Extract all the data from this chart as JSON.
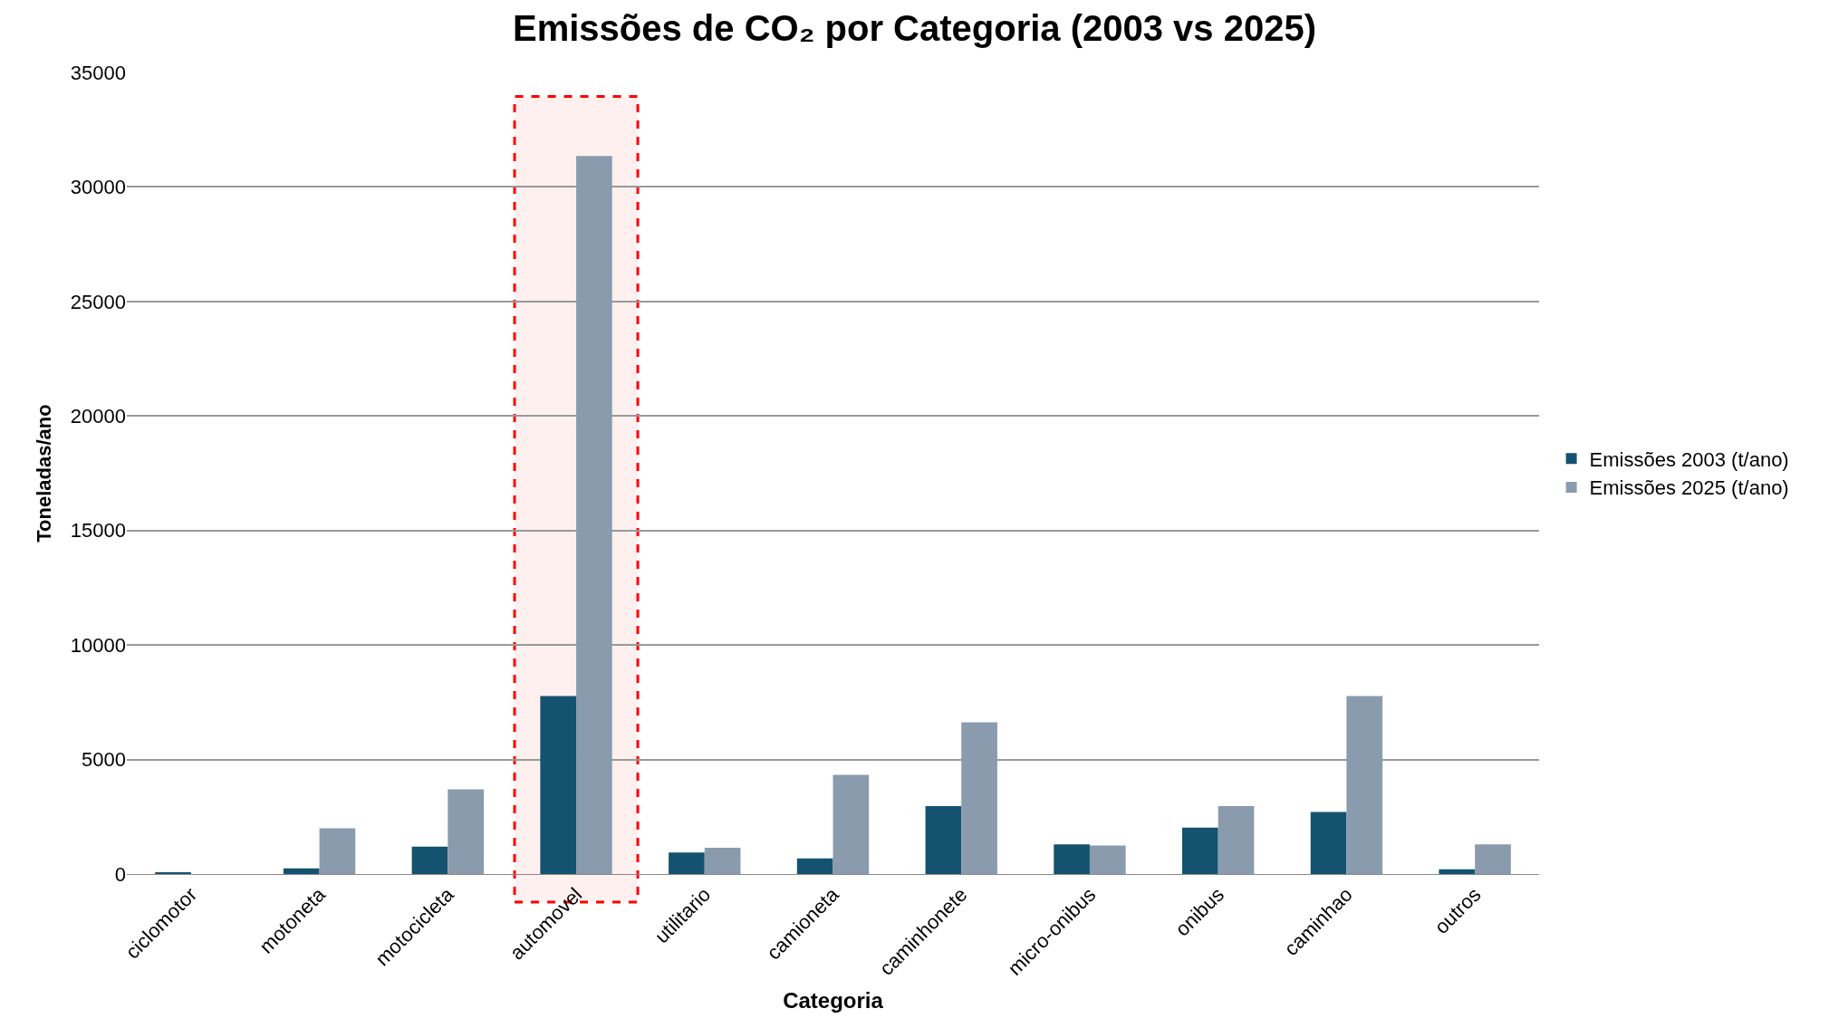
{
  "chart_data": {
    "type": "bar",
    "title": "Emissões de CO₂ por Categoria (2003 vs 2025)",
    "xlabel": "Categoria",
    "ylabel": "Toneladas/ano",
    "categories": [
      "ciclomotor",
      "motoneta",
      "motocicleta",
      "automovel",
      "utilitario",
      "camioneta",
      "caminhonete",
      "micro-onibus",
      "onibus",
      "caminhao",
      "outros"
    ],
    "series": [
      {
        "name": "Emissões 2003 (t/ano)",
        "color": "#145370",
        "values": [
          80,
          250,
          1200,
          7770,
          940,
          680,
          2970,
          1300,
          2030,
          2710,
          210
        ]
      },
      {
        "name": "Emissões 2025 (t/ano)",
        "color": "#8a9bad",
        "values": [
          0,
          2000,
          3700,
          31350,
          1150,
          4330,
          6620,
          1250,
          2970,
          7770,
          1300
        ]
      }
    ],
    "ylim": [
      0,
      35000
    ],
    "yticks": [
      0,
      5000,
      10000,
      15000,
      20000,
      25000,
      30000,
      35000
    ],
    "grid": "y",
    "legend": "right",
    "bands": [
      {
        "axis": "x",
        "from": "automovel",
        "to": "automovel",
        "color": "#ff0000"
      }
    ]
  }
}
